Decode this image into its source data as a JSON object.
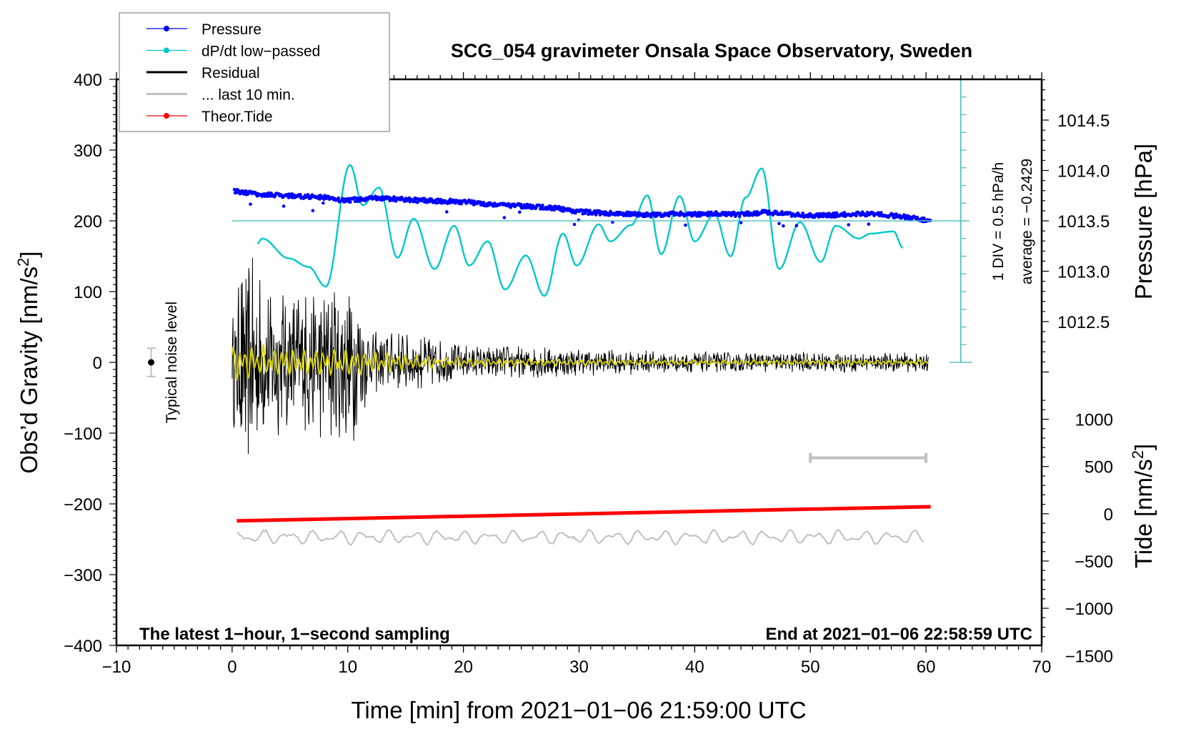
{
  "chart_data": {
    "type": "line",
    "title": "SCG_054 gravimeter Onsala Space Observatory, Sweden",
    "xlabel": "Time [min] from 2021−01−06 21:59:00 UTC",
    "ylabel": "Obs’d Gravity [nm/s²]",
    "ylabel_parts": {
      "main": "Obs’d Gravity [nm/s",
      "sup": "2",
      "end": "]"
    },
    "y2label_pressure": "Pressure [hPa]",
    "y2label_tide_parts": {
      "main": "Tide [nm/s",
      "sup": "2",
      "end": "]"
    },
    "xlim": [
      -10,
      70
    ],
    "ylim": [
      -400,
      400
    ],
    "x_ticks": [
      -10,
      0,
      10,
      20,
      30,
      40,
      50,
      60,
      70
    ],
    "x_tick_labels": [
      "−10",
      "0",
      "10",
      "20",
      "30",
      "40",
      "50",
      "60",
      "70"
    ],
    "y_ticks": [
      400,
      300,
      200,
      100,
      0,
      -100,
      -200,
      -300,
      -400
    ],
    "y_tick_labels": [
      "400",
      "300",
      "200",
      "100",
      "0",
      "−100",
      "−200",
      "−300",
      "−400"
    ],
    "pressure_axis": {
      "ticks": [
        1014.5,
        1014.0,
        1013.5,
        1013.0,
        1012.5
      ],
      "tick_labels": [
        "1014.5",
        "1014.0",
        "1013.5",
        "1013.0",
        "1012.5"
      ],
      "ref_value_hpa": 1013.5,
      "ref_gravity": 200,
      "gravity_per_hpa": 142.4
    },
    "tide_axis": {
      "ticks": [
        1000,
        500,
        0,
        -500,
        -1000,
        -1500
      ],
      "tick_labels": [
        "1000",
        "500",
        "0",
        "−500",
        "−1000",
        "−1500"
      ],
      "zero_gravity": -214,
      "gravity_per_tide": 0.1336
    },
    "grid": false,
    "legend_position": "top-left",
    "legend": [
      {
        "label": "Pressure",
        "color": "#0000ff",
        "marker": "dot"
      },
      {
        "label": "dP/dt low−passed",
        "color": "#00c8c8",
        "marker": "dot"
      },
      {
        "label": "Residual",
        "color": "#000000",
        "marker": "line"
      },
      {
        "label": "... last 10 min.",
        "color": "#c0c0c0",
        "marker": "line"
      },
      {
        "label": "Theor.Tide",
        "color": "#ff0000",
        "marker": "dot"
      }
    ],
    "annotations": {
      "bottom_left": "The latest 1−hour, 1−second sampling",
      "bottom_right": "End at 2021−01−06 22:58:59 UTC",
      "noise_label": "Typical noise level",
      "div_label": "1 DIV = 0.5 hPa/h",
      "average_label": "average = −0.2429"
    },
    "noise_level": {
      "x": -7,
      "y": 0,
      "err": 20
    },
    "last10_bracket": {
      "x_start": 50,
      "x_end": 60,
      "y": -135
    },
    "dpdt_scale_bar": {
      "x": 63,
      "y_top": 400,
      "y_bottom": 0,
      "zero_line_y": 200,
      "divisions": 16
    },
    "series": [
      {
        "name": "Pressure",
        "color": "#0000ff",
        "unit": "gravity-equivalent",
        "x": [
          0.2,
          2,
          4,
          6,
          8,
          9,
          10,
          12,
          14,
          16,
          18,
          20,
          22,
          24,
          26,
          28,
          30,
          32,
          34,
          36,
          38,
          40,
          42,
          44,
          46,
          48,
          50,
          52,
          54,
          56,
          58,
          60.4
        ],
        "values": [
          242,
          238,
          236,
          235,
          233,
          230,
          229,
          232,
          231,
          229,
          228,
          227,
          224,
          222,
          220,
          218,
          213,
          211,
          210,
          208,
          210,
          209,
          210,
          209,
          212,
          210,
          207,
          208,
          210,
          209,
          206,
          200
        ]
      },
      {
        "name": "dP/dt low-passed",
        "color": "#00c8c8",
        "unit": "gravity-equivalent",
        "x": [
          2.2,
          2.6,
          4.9,
          6.6,
          8.1,
          10.2,
          11.3,
          12.7,
          14.3,
          15.7,
          17.5,
          19.2,
          20.5,
          22.1,
          23.6,
          25.4,
          27.0,
          28.6,
          29.8,
          31.7,
          32.7,
          34.5,
          35.9,
          37.1,
          38.7,
          40.0,
          41.7,
          43.1,
          44.4,
          45.8,
          47.3,
          49.1,
          50.9,
          52.2,
          54.2,
          55.2,
          57.2,
          58.0
        ],
        "values": [
          168,
          175,
          147,
          135,
          107,
          279,
          222,
          247,
          148,
          203,
          132,
          193,
          137,
          171,
          103,
          151,
          94,
          182,
          137,
          195,
          171,
          194,
          236,
          153,
          235,
          171,
          209,
          150,
          233,
          274,
          132,
          198,
          142,
          193,
          175,
          182,
          185,
          162
        ]
      },
      {
        "name": "Residual",
        "color": "#000000",
        "envelope_x": [
          0,
          1,
          3,
          5,
          8,
          10,
          10.8,
          12,
          15,
          20,
          25,
          30,
          40,
          50,
          60.2
        ],
        "envelope_amplitude": [
          80,
          170,
          120,
          110,
          115,
          130,
          120,
          45,
          45,
          25,
          25,
          20,
          15,
          15,
          14
        ]
      },
      {
        "name": "Residual low-passed",
        "color": "#d4d000",
        "envelope_x": [
          0,
          5,
          10,
          15,
          20,
          30,
          40,
          50,
          60.2
        ],
        "envelope_amplitude": [
          28,
          25,
          22,
          12,
          7,
          5,
          4,
          4,
          4
        ]
      },
      {
        "name": "... last 10 min.",
        "color": "#c0c0c0",
        "x_range": [
          0.4,
          59.8
        ],
        "baseline": -247,
        "amplitude": 10
      },
      {
        "name": "Theor.Tide",
        "color": "#ff0000",
        "unit": "nm/s2",
        "x": [
          0.4,
          60.4
        ],
        "values": [
          -75,
          75
        ]
      }
    ]
  }
}
